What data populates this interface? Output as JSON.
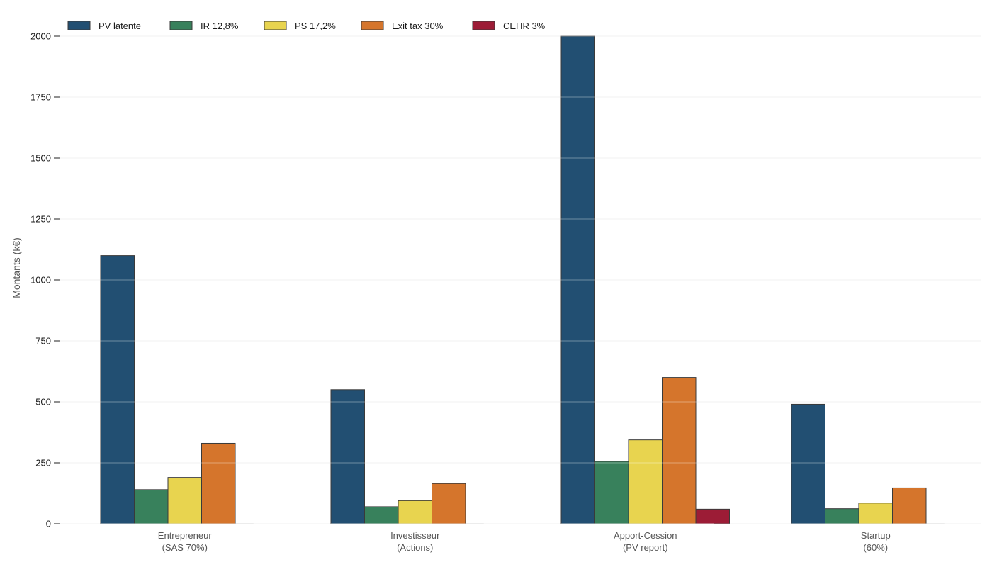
{
  "chart_data": {
    "type": "bar",
    "categories": [
      [
        "Entrepreneur",
        "(SAS 70%)"
      ],
      [
        "Investisseur",
        "(Actions)"
      ],
      [
        "Apport-Cession",
        "(PV report)"
      ],
      [
        "Startup",
        "(60%)"
      ]
    ],
    "series": [
      {
        "name": "PV latente",
        "color": "#224f72",
        "values": [
          1100,
          550,
          2000,
          490
        ]
      },
      {
        "name": "IR 12,8%",
        "color": "#38815c",
        "values": [
          140,
          70,
          256,
          62
        ]
      },
      {
        "name": "PS 17,2%",
        "color": "#e8d44f",
        "values": [
          190,
          95,
          344,
          85
        ]
      },
      {
        "name": "Exit tax 30%",
        "color": "#d5752c",
        "values": [
          330,
          165,
          600,
          147
        ]
      },
      {
        "name": "CEHR 3%",
        "color": "#9c1c36",
        "values": [
          0,
          0,
          60,
          0
        ]
      }
    ],
    "title": "",
    "xlabel": "",
    "ylabel": "Montants (k€)",
    "ylim": [
      0,
      2000
    ],
    "yticks": [
      0,
      250,
      500,
      750,
      1000,
      1250,
      1500,
      1750,
      2000
    ],
    "grid": true,
    "legend_position": "top-left"
  }
}
